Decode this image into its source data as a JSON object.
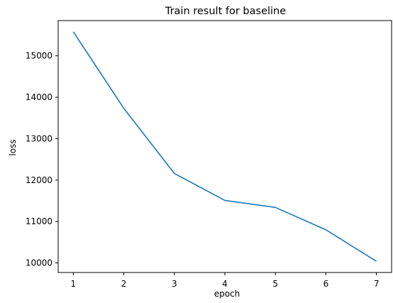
{
  "chart_data": {
    "type": "line",
    "title": "Train result for baseline",
    "xlabel": "epoch",
    "ylabel": "loss",
    "x": [
      1,
      2,
      3,
      4,
      5,
      6,
      7
    ],
    "series": [
      {
        "values": [
          15580,
          13730,
          12160,
          11510,
          11340,
          10800,
          10040
        ]
      }
    ],
    "xlim": [
      0.7,
      7.3
    ],
    "ylim": [
      9770,
      15850
    ],
    "xticks": [
      1,
      2,
      3,
      4,
      5,
      6,
      7
    ],
    "xtick_labels": [
      "1",
      "2",
      "3",
      "4",
      "5",
      "6",
      "7"
    ],
    "yticks": [
      10000,
      11000,
      12000,
      13000,
      14000,
      15000
    ],
    "ytick_labels": [
      "10000",
      "11000",
      "12000",
      "13000",
      "14000",
      "15000"
    ],
    "grid": false,
    "legend": "none",
    "line_color": "#1f77b4"
  }
}
